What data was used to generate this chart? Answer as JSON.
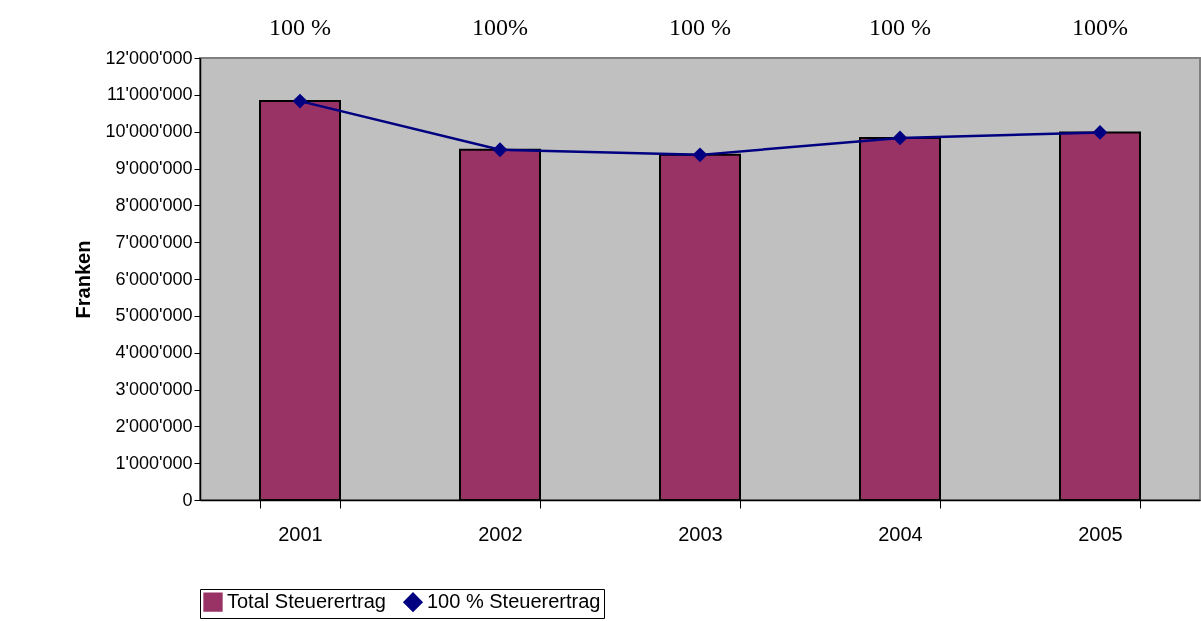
{
  "chart_data": {
    "type": "bar",
    "ylabel": "Franken",
    "categories": [
      "2001",
      "2002",
      "2003",
      "2004",
      "2005"
    ],
    "series": [
      {
        "name": "Total Steuerertrag",
        "color": "#993366",
        "values": [
          10830000,
          9510000,
          9370000,
          9830000,
          9980000
        ]
      },
      {
        "name": "100 % Steuerertrag",
        "type": "line",
        "color": "#000080",
        "marker": "diamond",
        "values": [
          10830000,
          9510000,
          9370000,
          9830000,
          9980000
        ]
      }
    ],
    "ylim": [
      0,
      12000000
    ],
    "yticks": [
      {
        "value": 0,
        "label": "0"
      },
      {
        "value": 1000000,
        "label": "1'000'000"
      },
      {
        "value": 2000000,
        "label": "2'000'000"
      },
      {
        "value": 3000000,
        "label": "3'000'000"
      },
      {
        "value": 4000000,
        "label": "4'000'000"
      },
      {
        "value": 5000000,
        "label": "5'000'000"
      },
      {
        "value": 6000000,
        "label": "6'000'000"
      },
      {
        "value": 7000000,
        "label": "7'000'000"
      },
      {
        "value": 8000000,
        "label": "8'000'000"
      },
      {
        "value": 9000000,
        "label": "9'000'000"
      },
      {
        "value": 10000000,
        "label": "10'000'000"
      },
      {
        "value": 11000000,
        "label": "11'000'000"
      },
      {
        "value": 12000000,
        "label": "12'000'000"
      }
    ],
    "annotations": [
      "100 %",
      "100%",
      "100 %",
      "100 %",
      "100%"
    ],
    "grid": false,
    "legend": "bottom"
  }
}
